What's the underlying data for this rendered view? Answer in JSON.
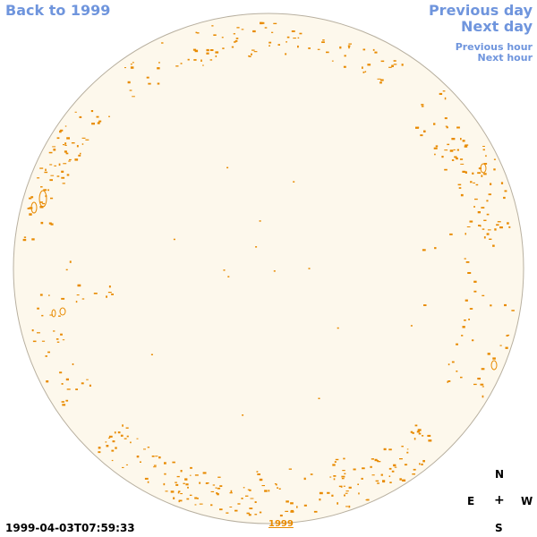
{
  "nav": {
    "back_label": "Back to 1999",
    "previous_day_label": "Previous day",
    "next_day_label": "Next day",
    "previous_hour_label": "Previous hour",
    "next_hour_label": "Next hour"
  },
  "compass": {
    "north": "N",
    "east": "E",
    "center": "+",
    "west": "W",
    "south": "S"
  },
  "footer": {
    "timestamp": "1999-04-03T07:59:33",
    "year_link": "1999"
  },
  "colors": {
    "disk_fill": "#fdf8ec",
    "disk_border": "#b8b0a0",
    "contour": "#e88a00",
    "link": "#6f95dd"
  }
}
